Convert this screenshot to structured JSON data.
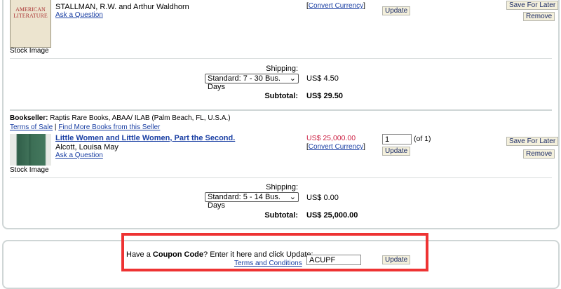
{
  "items": [
    {
      "author": "STALLMAN, R.W. and Arthur Waldhorn",
      "ask": "Ask a Question",
      "image_caption": "Stock Image",
      "cover_text": "AMERICAN LITERATURE",
      "convert": "Convert Currency",
      "update": "Update",
      "save": "Save For Later",
      "remove": "Remove",
      "shipping_label": "Shipping:",
      "shipping_option": "Standard: 7 - 30 Bus. Days",
      "shipping_cost": "US$ 4.50",
      "subtotal_label": "Subtotal:",
      "subtotal": "US$ 29.50"
    },
    {
      "bookseller_label": "Bookseller:",
      "bookseller": "Raptis Rare Books, ABAA/ ILAB (Palm Beach, FL, U.S.A.)",
      "terms": "Terms of Sale",
      "sep": "|",
      "more": "Find More Books from this Seller",
      "title": "Little Women and Little Women, Part the Second.",
      "author": "Alcott, Louisa May",
      "ask": "Ask a Question",
      "image_caption": "Stock Image",
      "price": "US$ 25,000.00",
      "convert": "Convert Currency",
      "qty": "1",
      "of": "(of 1)",
      "update": "Update",
      "save": "Save For Later",
      "remove": "Remove",
      "shipping_label": "Shipping:",
      "shipping_option": "Standard: 5 - 14 Bus. Days",
      "shipping_cost": "US$ 0.00",
      "subtotal_label": "Subtotal:",
      "subtotal": "US$ 25,000.00"
    }
  ],
  "coupon": {
    "prompt_pre": "Have a ",
    "prompt_bold": "Coupon Code",
    "prompt_post": "? Enter it here and click Update:",
    "terms": "Terms and Conditions",
    "value": "ACUPF",
    "update": "Update"
  },
  "colors": {
    "price": "#cc2244",
    "link": "#1a3fa3",
    "highlight": "#ee3333"
  }
}
